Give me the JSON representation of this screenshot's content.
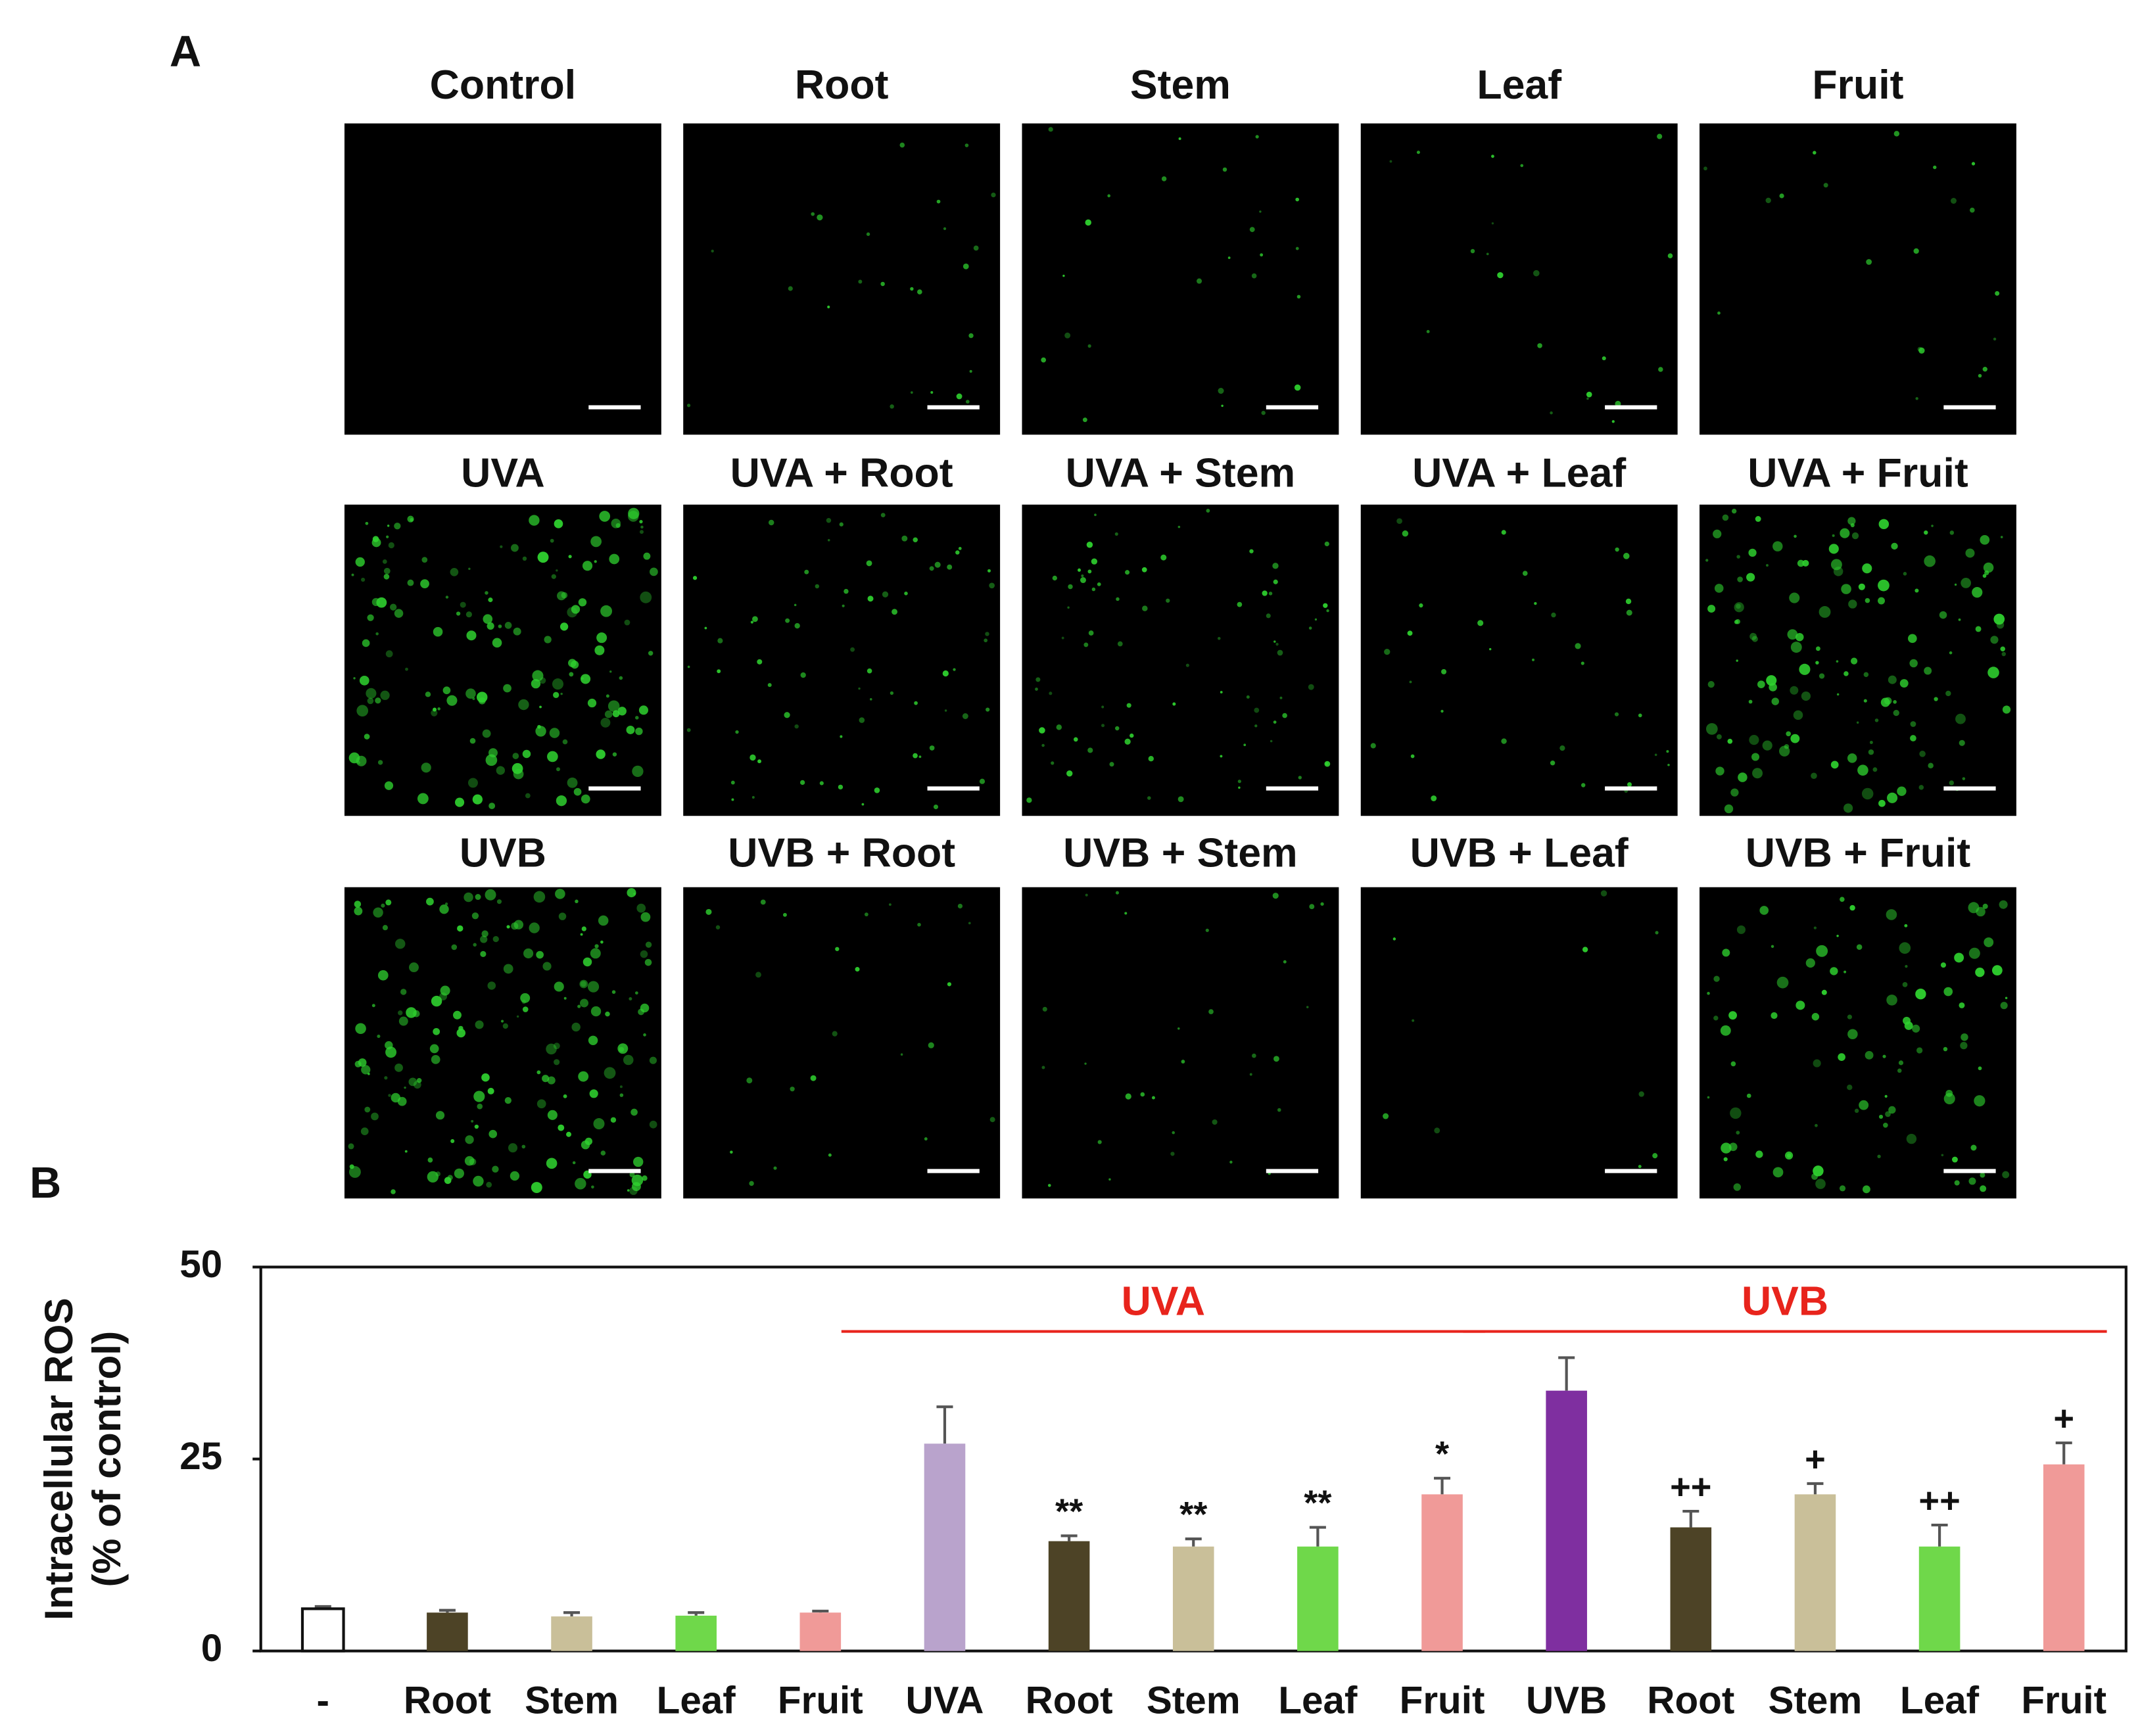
{
  "panel_a": {
    "label": "A",
    "titles": [
      "Control",
      "Root",
      "Stem",
      "Leaf",
      "Fruit",
      "UVA",
      "UVA + Root",
      "UVA + Stem",
      "UVA + Leaf",
      "UVA + Fruit",
      "UVB",
      "UVB + Root",
      "UVB + Stem",
      "UVB + Leaf",
      "UVB + Fruit"
    ]
  },
  "chart_data": {
    "type": "bar",
    "panel_label": "B",
    "ylabel": [
      "Intracellular ROS",
      "(% of control)"
    ],
    "categories": [
      "-",
      "Root",
      "Stem",
      "Leaf",
      "Fruit",
      "UVA",
      "Root",
      "Stem",
      "Leaf",
      "Fruit",
      "UVB",
      "Root",
      "Stem",
      "Leaf",
      "Fruit"
    ],
    "values": [
      5.5,
      5.0,
      4.5,
      4.6,
      5.0,
      27.0,
      14.3,
      13.6,
      13.6,
      20.4,
      33.9,
      16.1,
      20.4,
      13.6,
      24.3
    ],
    "errors": [
      0.3,
      0.3,
      0.5,
      0.4,
      0.2,
      4.8,
      0.7,
      1.0,
      2.5,
      2.1,
      4.3,
      2.1,
      1.4,
      2.8,
      2.8
    ],
    "colors": [
      "#ffffff",
      "#4d4326",
      "#c9bf99",
      "#6fd84a",
      "#f09a98",
      "#b9a3cc",
      "#4d4326",
      "#c9bf99",
      "#6fd84a",
      "#f09a98",
      "#7f2fa0",
      "#4d4326",
      "#c9bf99",
      "#6fd84a",
      "#f09a98"
    ],
    "significance": [
      null,
      null,
      null,
      null,
      null,
      null,
      "**",
      "**",
      "**",
      "*",
      null,
      "++",
      "+",
      "++",
      "+"
    ],
    "groups": [
      "UVA",
      "UVB"
    ],
    "group_color": "#e8241c",
    "ylim": [
      0,
      50
    ],
    "yticks": [
      0,
      25,
      50
    ],
    "grid": false
  }
}
